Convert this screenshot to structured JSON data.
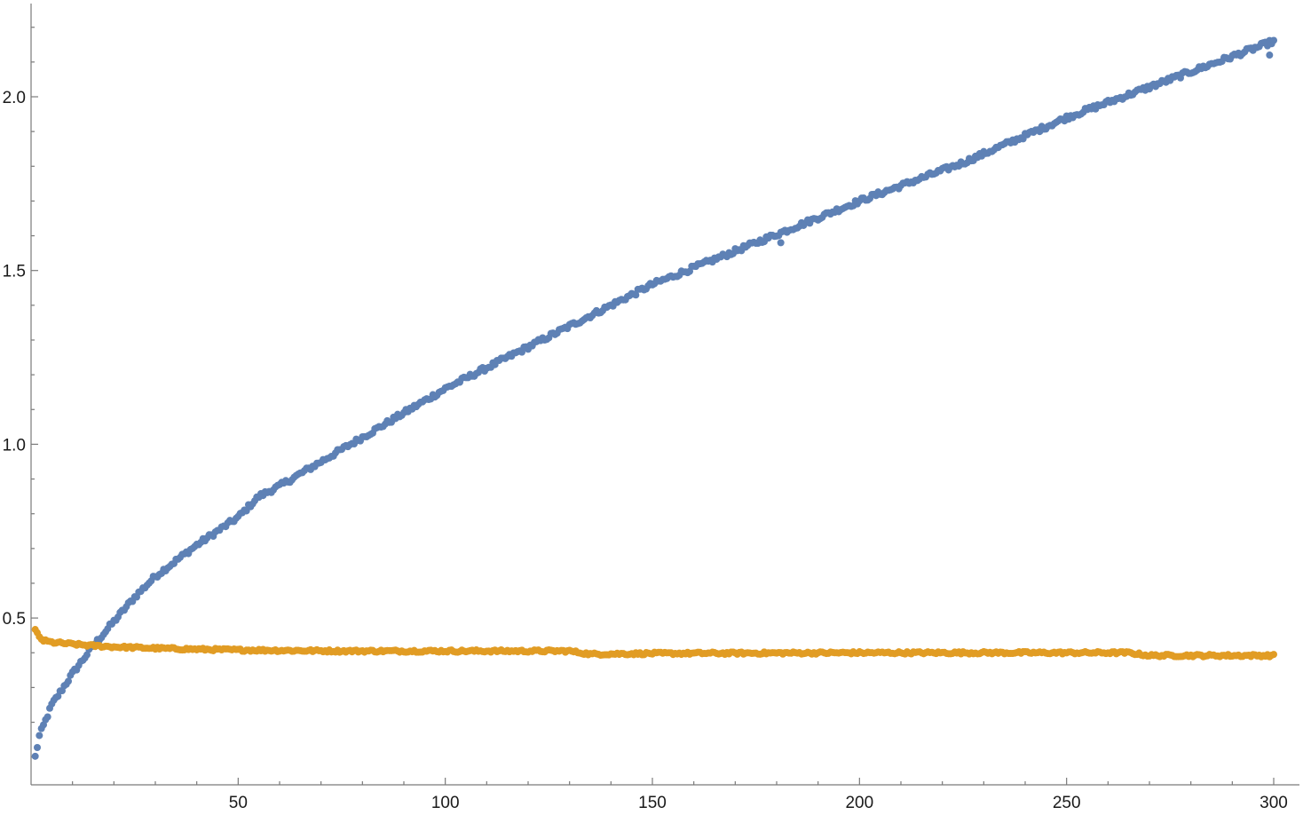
{
  "chart_data": {
    "type": "scatter",
    "title": "",
    "xlabel": "",
    "ylabel": "",
    "xlim": [
      0,
      307
    ],
    "ylim": [
      0.02,
      2.27
    ],
    "x_axis_crosses_y_at": 0.02,
    "grid": false,
    "legend": "none",
    "x_ticks": [
      50,
      100,
      150,
      200,
      250,
      300
    ],
    "x_tick_labels": [
      "50",
      "100",
      "150",
      "200",
      "250",
      "300"
    ],
    "y_ticks": [
      0.5,
      1.0,
      1.5,
      2.0
    ],
    "y_tick_labels": [
      "0.5",
      "1.0",
      "1.5",
      "2.0"
    ],
    "series": [
      {
        "color": "#5E81B5",
        "x_start": 1,
        "x_end": 300,
        "x_step": 0.5,
        "anchors_x": [
          1,
          2,
          5,
          10,
          15,
          20,
          25,
          30,
          40,
          50,
          55,
          60,
          70,
          80,
          100,
          125,
          150,
          175,
          200,
          225,
          250,
          275,
          300
        ],
        "anchors_y": [
          0.1,
          0.16,
          0.25,
          0.34,
          0.42,
          0.49,
          0.56,
          0.62,
          0.71,
          0.79,
          0.85,
          0.88,
          0.95,
          1.02,
          1.16,
          1.31,
          1.46,
          1.58,
          1.7,
          1.81,
          1.94,
          2.05,
          2.16
        ],
        "noise": 0.007,
        "outliers": [
          [
            181,
            1.58
          ],
          [
            299,
            2.12
          ]
        ]
      },
      {
        "color": "#E19C24",
        "x_start": 1,
        "x_end": 300,
        "x_step": 0.5,
        "anchors_x": [
          1,
          2,
          3,
          5,
          10,
          15,
          20,
          30,
          40,
          50,
          75,
          100,
          130,
          135,
          150,
          200,
          230,
          265,
          270,
          300
        ],
        "anchors_y": [
          0.465,
          0.445,
          0.435,
          0.43,
          0.425,
          0.42,
          0.417,
          0.413,
          0.41,
          0.408,
          0.405,
          0.405,
          0.405,
          0.396,
          0.398,
          0.4,
          0.4,
          0.4,
          0.392,
          0.392
        ],
        "noise": 0.0035,
        "outliers": []
      }
    ]
  }
}
